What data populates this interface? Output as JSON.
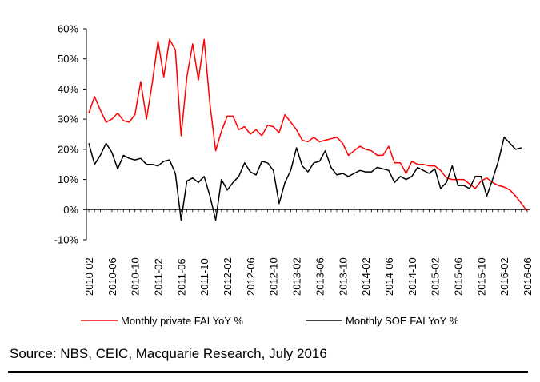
{
  "chart_data": {
    "type": "line",
    "title": "",
    "xlabel": "",
    "ylabel": "",
    "ylim": [
      -10,
      60
    ],
    "yticks": [
      "-10%",
      "0%",
      "10%",
      "20%",
      "30%",
      "40%",
      "50%",
      "60%"
    ],
    "xticks": [
      "2010-02",
      "2010-06",
      "2010-10",
      "2011-02",
      "2011-06",
      "2011-10",
      "2012-02",
      "2012-06",
      "2012-10",
      "2013-02",
      "2013-06",
      "2013-10",
      "2014-02",
      "2014-06",
      "2014-10",
      "2015-02",
      "2015-06",
      "2015-10",
      "2016-02",
      "2016-06"
    ],
    "grid": false,
    "legend": "bottom",
    "series": [
      {
        "name": "Monthly private FAI YoY %",
        "color": "#ff0000",
        "points": [
          [
            "2010-02",
            32
          ],
          [
            "2010-03",
            37.5
          ],
          [
            "2010-04",
            33
          ],
          [
            "2010-05",
            29
          ],
          [
            "2010-06",
            30
          ],
          [
            "2010-07",
            32
          ],
          [
            "2010-08",
            29.5
          ],
          [
            "2010-09",
            29
          ],
          [
            "2010-10",
            31.5
          ],
          [
            "2010-11",
            42.5
          ],
          [
            "2010-12",
            30
          ],
          [
            "2011-01",
            42
          ],
          [
            "2011-02",
            56
          ],
          [
            "2011-03",
            44
          ],
          [
            "2011-04",
            56.5
          ],
          [
            "2011-05",
            53
          ],
          [
            "2011-06",
            24.5
          ],
          [
            "2011-07",
            44
          ],
          [
            "2011-08",
            55
          ],
          [
            "2011-09",
            43
          ],
          [
            "2011-10",
            56.5
          ],
          [
            "2011-11",
            35
          ],
          [
            "2011-12",
            19.5
          ],
          [
            "2012-01",
            26
          ],
          [
            "2012-02",
            31
          ],
          [
            "2012-03",
            31
          ],
          [
            "2012-04",
            26.5
          ],
          [
            "2012-05",
            27.5
          ],
          [
            "2012-06",
            25
          ],
          [
            "2012-07",
            26.5
          ],
          [
            "2012-08",
            24.5
          ],
          [
            "2012-09",
            28
          ],
          [
            "2012-10",
            27.5
          ],
          [
            "2012-11",
            25.5
          ],
          [
            "2012-12",
            31.5
          ],
          [
            "2013-01",
            29
          ],
          [
            "2013-02",
            26.5
          ],
          [
            "2013-03",
            23
          ],
          [
            "2013-04",
            22.5
          ],
          [
            "2013-05",
            24
          ],
          [
            "2013-06",
            22.5
          ],
          [
            "2013-07",
            23
          ],
          [
            "2013-08",
            23.5
          ],
          [
            "2013-09",
            24
          ],
          [
            "2013-10",
            22
          ],
          [
            "2013-11",
            18
          ],
          [
            "2013-12",
            19.5
          ],
          [
            "2014-01",
            21
          ],
          [
            "2014-02",
            20
          ],
          [
            "2014-03",
            19.5
          ],
          [
            "2014-04",
            18
          ],
          [
            "2014-05",
            18
          ],
          [
            "2014-06",
            21
          ],
          [
            "2014-07",
            15.5
          ],
          [
            "2014-08",
            15.5
          ],
          [
            "2014-09",
            12
          ],
          [
            "2014-10",
            16
          ],
          [
            "2014-11",
            15
          ],
          [
            "2014-12",
            15
          ],
          [
            "2015-01",
            14.5
          ],
          [
            "2015-02",
            14.5
          ],
          [
            "2015-03",
            13
          ],
          [
            "2015-04",
            10.5
          ],
          [
            "2015-05",
            10
          ],
          [
            "2015-06",
            10
          ],
          [
            "2015-07",
            10
          ],
          [
            "2015-08",
            8.5
          ],
          [
            "2015-09",
            7
          ],
          [
            "2015-10",
            9.5
          ],
          [
            "2015-11",
            10.5
          ],
          [
            "2015-12",
            9
          ],
          [
            "2016-01",
            8
          ],
          [
            "2016-02",
            7.5
          ],
          [
            "2016-03",
            6.5
          ],
          [
            "2016-04",
            4.5
          ],
          [
            "2016-05",
            2
          ],
          [
            "2016-06",
            -0.5
          ]
        ]
      },
      {
        "name": "Monthly SOE FAI YoY %",
        "color": "#000000",
        "points": [
          [
            "2010-02",
            22
          ],
          [
            "2010-03",
            15
          ],
          [
            "2010-04",
            18
          ],
          [
            "2010-05",
            22
          ],
          [
            "2010-06",
            19
          ],
          [
            "2010-07",
            13.5
          ],
          [
            "2010-08",
            18
          ],
          [
            "2010-09",
            17
          ],
          [
            "2010-10",
            16.5
          ],
          [
            "2010-11",
            17
          ],
          [
            "2010-12",
            15
          ],
          [
            "2011-01",
            15
          ],
          [
            "2011-02",
            14.5
          ],
          [
            "2011-03",
            16
          ],
          [
            "2011-04",
            16.5
          ],
          [
            "2011-05",
            12
          ],
          [
            "2011-06",
            -3.5
          ],
          [
            "2011-07",
            9.5
          ],
          [
            "2011-08",
            10.5
          ],
          [
            "2011-09",
            9
          ],
          [
            "2011-10",
            11
          ],
          [
            "2011-11",
            4.5
          ],
          [
            "2011-12",
            -3.5
          ],
          [
            "2012-01",
            10
          ],
          [
            "2012-02",
            6.5
          ],
          [
            "2012-03",
            9
          ],
          [
            "2012-04",
            11
          ],
          [
            "2012-05",
            15.5
          ],
          [
            "2012-06",
            12.5
          ],
          [
            "2012-07",
            11.5
          ],
          [
            "2012-08",
            16
          ],
          [
            "2012-09",
            15.5
          ],
          [
            "2012-10",
            13
          ],
          [
            "2012-11",
            2
          ],
          [
            "2012-12",
            9
          ],
          [
            "2013-01",
            13
          ],
          [
            "2013-02",
            20.5
          ],
          [
            "2013-03",
            14.5
          ],
          [
            "2013-04",
            12.5
          ],
          [
            "2013-05",
            15.5
          ],
          [
            "2013-06",
            16
          ],
          [
            "2013-07",
            19.5
          ],
          [
            "2013-08",
            14
          ],
          [
            "2013-09",
            11.5
          ],
          [
            "2013-10",
            12
          ],
          [
            "2013-11",
            11
          ],
          [
            "2013-12",
            12
          ],
          [
            "2014-01",
            13
          ],
          [
            "2014-02",
            12.5
          ],
          [
            "2014-03",
            12.5
          ],
          [
            "2014-04",
            14
          ],
          [
            "2014-05",
            13.5
          ],
          [
            "2014-06",
            13
          ],
          [
            "2014-07",
            9
          ],
          [
            "2014-08",
            11
          ],
          [
            "2014-09",
            10
          ],
          [
            "2014-10",
            11
          ],
          [
            "2014-11",
            14
          ],
          [
            "2014-12",
            13
          ],
          [
            "2015-01",
            12
          ],
          [
            "2015-02",
            13.5
          ],
          [
            "2015-03",
            7
          ],
          [
            "2015-04",
            9
          ],
          [
            "2015-05",
            14.5
          ],
          [
            "2015-06",
            8
          ],
          [
            "2015-07",
            8
          ],
          [
            "2015-08",
            7
          ],
          [
            "2015-09",
            11
          ],
          [
            "2015-10",
            11
          ],
          [
            "2015-11",
            4.5
          ],
          [
            "2015-12",
            10
          ],
          [
            "2016-01",
            16
          ],
          [
            "2016-02",
            24
          ],
          [
            "2016-03",
            22
          ],
          [
            "2016-04",
            20
          ],
          [
            "2016-05",
            20.5
          ]
        ]
      }
    ]
  },
  "source_text": "Source: NBS, CEIC, Macquarie Research, July 2016"
}
